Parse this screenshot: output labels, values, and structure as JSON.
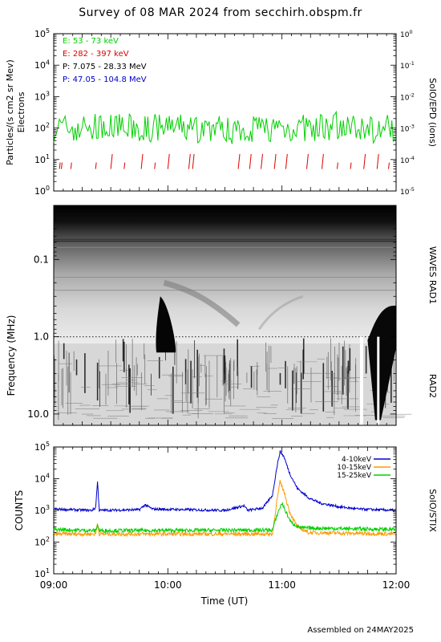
{
  "title": "Survey of 08 MAR 2024 from secchirh.obspm.fr",
  "footer": "Assembled on 24MAY2025",
  "colors": {
    "green": "#00d000",
    "red": "#dd0000",
    "black": "#000000",
    "blue": "#0000cc",
    "orange": "#ff9900"
  },
  "time_axis": {
    "label": "Time (UT)",
    "ticks": [
      "09:00",
      "10:00",
      "11:00",
      "12:00"
    ]
  },
  "chart_data": [
    {
      "type": "line",
      "name": "particles",
      "ylabel": "Particles/(s cm2 sr Mev)",
      "ylabel2": "Electrons",
      "right_label": "SoIO/EPD (ions)",
      "yscale": "log",
      "ylim": [
        1,
        100000
      ],
      "left_ticks": [
        "10^0",
        "10^1",
        "10^2",
        "10^3",
        "10^4",
        "10^5"
      ],
      "right_ticks": [
        "10^-5",
        "10^-4",
        "10^-3",
        "10^-2",
        "10^-1",
        "10^0"
      ],
      "legend": [
        {
          "label": "E: 53 - 73 keV",
          "color": "#00d000"
        },
        {
          "label": "E: 282 - 397 keV",
          "color": "#dd0000"
        },
        {
          "label": "P: 7.075 - 28.33 MeV",
          "color": "#000000"
        },
        {
          "label": "P: 47.05 - 104.8 MeV",
          "color": "#0000cc"
        }
      ],
      "series": [
        {
          "name": "E: 53 - 73 keV",
          "color": "#00d000",
          "baseline": 100,
          "range": [
            30,
            350
          ]
        },
        {
          "name": "E: 282 - 397 keV",
          "color": "#dd0000",
          "baseline": 5,
          "range": [
            5,
            15
          ]
        }
      ]
    },
    {
      "type": "heatmap",
      "name": "waves",
      "ylabel": "Frequency (MHz)",
      "right_label_top": "WAVES RAD1",
      "right_label_bottom": "RAD2",
      "yscale": "log",
      "ylim": [
        0.02,
        14
      ],
      "ticks": [
        "0.1",
        "1.0",
        "10.0"
      ],
      "bursts": [
        {
          "start": "09:53",
          "end": "10:05",
          "fmin": 0.3,
          "fmax": 1.6
        },
        {
          "start": "11:43",
          "end": "12:00",
          "fmin": 0.4,
          "fmax": 12
        }
      ]
    },
    {
      "type": "line",
      "name": "stix",
      "ylabel": "COUNTS",
      "right_label": "SoIO/STIX",
      "yscale": "log",
      "ylim": [
        10,
        100000
      ],
      "ticks": [
        "10^1",
        "10^2",
        "10^3",
        "10^4",
        "10^5"
      ],
      "series": [
        {
          "name": "4-10keV",
          "color": "#0000cc",
          "points": [
            [
              "09:00",
              1100
            ],
            [
              "09:20",
              1000
            ],
            [
              "09:22",
              1200
            ],
            [
              "09:23",
              8000
            ],
            [
              "09:24",
              1000
            ],
            [
              "09:45",
              1050
            ],
            [
              "09:48",
              1500
            ],
            [
              "09:52",
              1100
            ],
            [
              "10:30",
              1000
            ],
            [
              "10:40",
              1400
            ],
            [
              "10:42",
              1000
            ],
            [
              "10:50",
              1200
            ],
            [
              "10:55",
              3000
            ],
            [
              "10:57",
              18000
            ],
            [
              "10:59",
              72000
            ],
            [
              "11:01",
              50000
            ],
            [
              "11:04",
              15000
            ],
            [
              "11:08",
              5000
            ],
            [
              "11:14",
              2500
            ],
            [
              "11:20",
              1700
            ],
            [
              "11:30",
              1300
            ],
            [
              "11:40",
              1100
            ],
            [
              "12:00",
              1000
            ]
          ]
        },
        {
          "name": "10-15keV",
          "color": "#ff9900",
          "points": [
            [
              "09:00",
              180
            ],
            [
              "09:22",
              180
            ],
            [
              "09:23",
              400
            ],
            [
              "09:24",
              180
            ],
            [
              "10:55",
              180
            ],
            [
              "10:57",
              1500
            ],
            [
              "10:59",
              8000
            ],
            [
              "11:01",
              4000
            ],
            [
              "11:04",
              900
            ],
            [
              "11:08",
              300
            ],
            [
              "11:14",
              200
            ],
            [
              "12:00",
              180
            ]
          ]
        },
        {
          "name": "15-25keV",
          "color": "#00d000",
          "points": [
            [
              "09:00",
              250
            ],
            [
              "09:22",
              230
            ],
            [
              "09:23",
              350
            ],
            [
              "09:24",
              230
            ],
            [
              "10:55",
              240
            ],
            [
              "10:58",
              900
            ],
            [
              "11:00",
              1700
            ],
            [
              "11:02",
              900
            ],
            [
              "11:05",
              400
            ],
            [
              "11:10",
              280
            ],
            [
              "12:00",
              250
            ]
          ]
        }
      ]
    }
  ]
}
